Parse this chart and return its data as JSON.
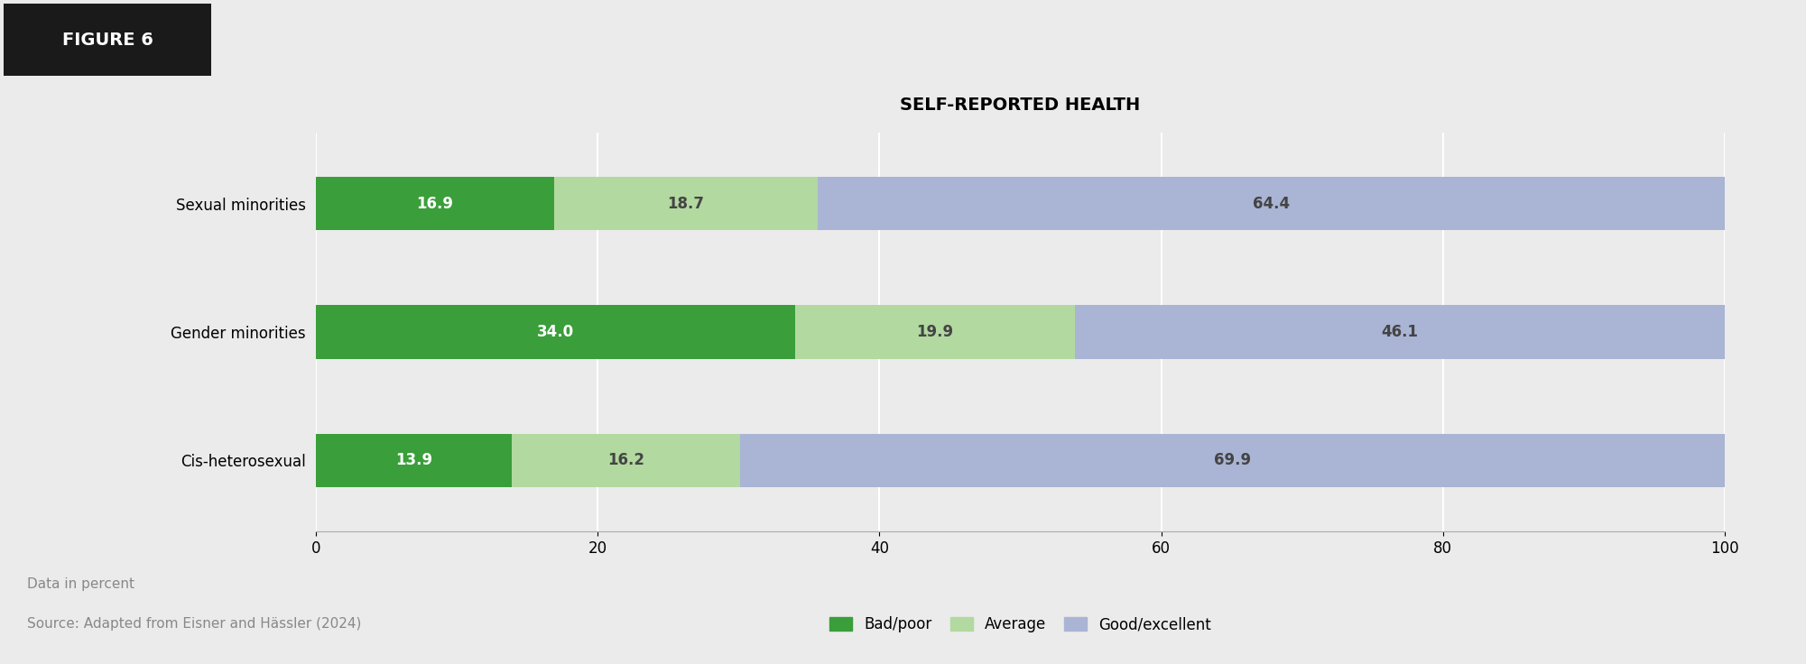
{
  "title": "SELF-REPORTED HEALTH",
  "categories_display": [
    "Sexual minorities",
    "Gender minorities",
    "Cis-heterosexual"
  ],
  "bad_poor": [
    16.9,
    34.0,
    13.9
  ],
  "average": [
    18.7,
    19.9,
    16.2
  ],
  "good_excellent": [
    64.4,
    46.1,
    69.9
  ],
  "color_bad": "#3a9e3a",
  "color_avg": "#b2d9a0",
  "color_good": "#aab4d4",
  "legend_labels": [
    "Bad/poor",
    "Average",
    "Good/excellent"
  ],
  "xlim": [
    0,
    100
  ],
  "xticks": [
    0,
    20,
    40,
    60,
    80,
    100
  ],
  "bar_height": 0.42,
  "background_color": "#ebebeb",
  "title_fontsize": 14,
  "label_fontsize": 12,
  "tick_fontsize": 12,
  "value_fontsize": 12,
  "footer_line1": "Data in percent",
  "footer_line2": "Source: Adapted from Eisner and Hässler (2024)",
  "figure_label": "FIGURE 6",
  "white_bg_top": "#ffffff"
}
